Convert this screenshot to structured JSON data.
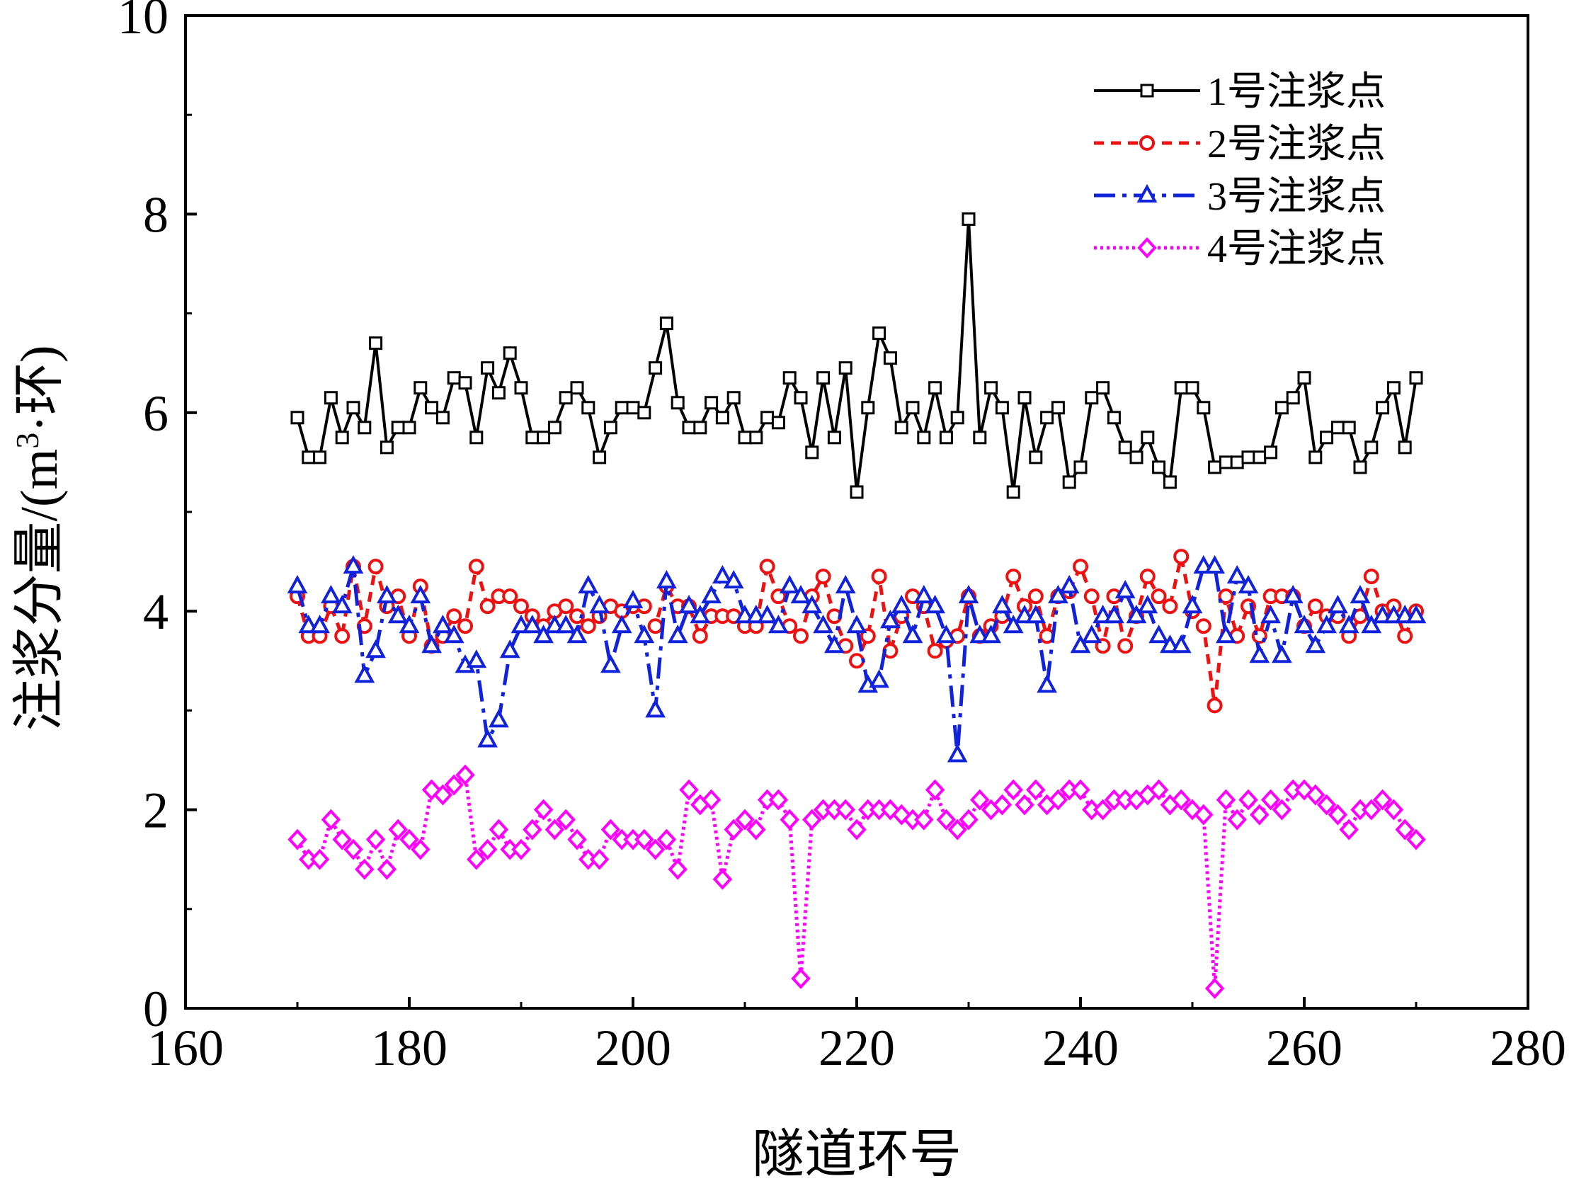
{
  "chart_data": {
    "type": "line",
    "title": "",
    "xlabel": "隧道环号",
    "ylabel_main": "注浆分量/(m",
    "ylabel_sup": "3",
    "ylabel_tail": "·环)",
    "xlim": [
      160,
      280
    ],
    "ylim": [
      0,
      10
    ],
    "xticks": [
      160,
      180,
      200,
      220,
      240,
      260,
      280
    ],
    "yticks": [
      0,
      2,
      4,
      6,
      8,
      10
    ],
    "grid": false,
    "legend_position": "top-right",
    "x": [
      170,
      171,
      172,
      173,
      174,
      175,
      176,
      177,
      178,
      179,
      180,
      181,
      182,
      183,
      184,
      185,
      186,
      187,
      188,
      189,
      190,
      191,
      192,
      193,
      194,
      195,
      196,
      197,
      198,
      199,
      200,
      201,
      202,
      203,
      204,
      205,
      206,
      207,
      208,
      209,
      210,
      211,
      212,
      213,
      214,
      215,
      216,
      217,
      218,
      219,
      220,
      221,
      222,
      223,
      224,
      225,
      226,
      227,
      228,
      229,
      230,
      231,
      232,
      233,
      234,
      235,
      236,
      237,
      238,
      239,
      240,
      241,
      242,
      243,
      244,
      245,
      246,
      247,
      248,
      249,
      250,
      251,
      252,
      253,
      254,
      255,
      256,
      257,
      258,
      259,
      260,
      261,
      262,
      263,
      264,
      265,
      266,
      267,
      268,
      269,
      270
    ],
    "series": [
      {
        "name": "1号注浆点",
        "color": "#000000",
        "marker": "square",
        "dash": "solid",
        "values": [
          5.95,
          5.55,
          5.55,
          6.15,
          5.75,
          6.05,
          5.85,
          6.7,
          5.65,
          5.85,
          5.85,
          6.25,
          6.05,
          5.95,
          6.35,
          6.3,
          5.75,
          6.45,
          6.2,
          6.6,
          6.25,
          5.75,
          5.75,
          5.85,
          6.15,
          6.25,
          6.05,
          5.55,
          5.85,
          6.05,
          6.05,
          6.0,
          6.45,
          6.9,
          6.1,
          5.85,
          5.85,
          6.1,
          5.95,
          6.15,
          5.75,
          5.75,
          5.95,
          5.9,
          6.35,
          6.15,
          5.6,
          6.35,
          5.75,
          6.45,
          5.2,
          6.05,
          6.8,
          6.55,
          5.85,
          6.05,
          5.75,
          6.25,
          5.75,
          5.95,
          7.95,
          5.75,
          6.25,
          6.05,
          5.2,
          6.15,
          5.55,
          5.95,
          6.05,
          5.3,
          5.45,
          6.15,
          6.25,
          5.95,
          5.65,
          5.55,
          5.75,
          5.45,
          5.3,
          6.25,
          6.25,
          6.05,
          5.45,
          5.5,
          5.5,
          5.55,
          5.55,
          5.6,
          6.05,
          6.15,
          6.35,
          5.55,
          5.75,
          5.85,
          5.85,
          5.45,
          5.65,
          6.05,
          6.25,
          5.65,
          6.35
        ]
      },
      {
        "name": "2号注浆点",
        "color": "#ee1111",
        "marker": "circle",
        "dash": "dashed",
        "values": [
          4.15,
          3.75,
          3.75,
          4.05,
          3.75,
          4.45,
          3.85,
          4.45,
          4.05,
          4.15,
          3.75,
          4.25,
          3.65,
          3.75,
          3.95,
          3.85,
          4.45,
          4.05,
          4.15,
          4.15,
          4.05,
          3.95,
          3.85,
          4.0,
          4.05,
          3.95,
          3.85,
          3.95,
          4.05,
          4.0,
          4.05,
          4.05,
          3.85,
          4.25,
          4.05,
          4.05,
          3.75,
          3.95,
          3.95,
          3.95,
          3.85,
          3.85,
          4.45,
          4.15,
          3.85,
          3.75,
          4.15,
          4.35,
          3.95,
          3.65,
          3.5,
          3.75,
          4.35,
          3.6,
          3.95,
          4.15,
          4.05,
          3.6,
          3.7,
          3.75,
          4.15,
          3.75,
          3.85,
          3.95,
          4.35,
          4.05,
          4.15,
          3.75,
          4.15,
          4.2,
          4.45,
          4.15,
          3.65,
          4.15,
          3.65,
          3.95,
          4.35,
          4.15,
          4.05,
          4.55,
          4.0,
          3.85,
          3.05,
          4.15,
          3.75,
          4.05,
          3.75,
          4.15,
          4.15,
          4.15,
          3.85,
          4.05,
          3.95,
          3.95,
          3.75,
          3.95,
          4.35,
          4.0,
          4.05,
          3.75,
          4.0
        ]
      },
      {
        "name": "3号注浆点",
        "color": "#1122dd",
        "marker": "triangle",
        "dash": "dashdot",
        "values": [
          4.25,
          3.85,
          3.85,
          4.15,
          4.05,
          4.45,
          3.35,
          3.6,
          4.15,
          3.95,
          3.85,
          4.15,
          3.65,
          3.85,
          3.75,
          3.45,
          3.5,
          2.7,
          2.9,
          3.6,
          3.85,
          3.85,
          3.75,
          3.85,
          3.85,
          3.75,
          4.25,
          4.05,
          3.45,
          3.85,
          4.1,
          3.75,
          3.0,
          4.3,
          3.75,
          4.05,
          3.95,
          4.15,
          4.35,
          4.3,
          3.95,
          3.95,
          3.95,
          3.85,
          4.25,
          4.15,
          4.05,
          3.85,
          3.65,
          4.25,
          3.85,
          3.25,
          3.3,
          3.9,
          4.05,
          3.75,
          4.15,
          4.05,
          3.75,
          2.55,
          4.15,
          3.75,
          3.75,
          4.05,
          3.85,
          3.95,
          3.95,
          3.25,
          4.15,
          4.25,
          3.65,
          3.75,
          3.95,
          3.95,
          4.2,
          3.95,
          4.05,
          3.75,
          3.65,
          3.65,
          4.05,
          4.45,
          4.45,
          3.75,
          4.35,
          4.25,
          3.55,
          3.95,
          3.55,
          4.15,
          3.85,
          3.65,
          3.85,
          4.05,
          3.85,
          4.15,
          3.85,
          3.95,
          3.95,
          3.95,
          3.95
        ]
      },
      {
        "name": "4号注浆点",
        "color": "#ff00ff",
        "marker": "diamond",
        "dash": "dotted",
        "values": [
          1.7,
          1.5,
          1.5,
          1.9,
          1.7,
          1.6,
          1.4,
          1.7,
          1.4,
          1.8,
          1.7,
          1.6,
          2.2,
          2.15,
          2.25,
          2.35,
          1.5,
          1.6,
          1.8,
          1.6,
          1.6,
          1.8,
          2.0,
          1.8,
          1.9,
          1.7,
          1.5,
          1.5,
          1.8,
          1.7,
          1.7,
          1.7,
          1.6,
          1.7,
          1.4,
          2.2,
          2.05,
          2.1,
          1.3,
          1.8,
          1.9,
          1.8,
          2.1,
          2.1,
          1.9,
          0.3,
          1.9,
          2.0,
          2.0,
          2.0,
          1.8,
          2.0,
          2.0,
          2.0,
          1.95,
          1.9,
          1.9,
          2.2,
          1.9,
          1.8,
          1.9,
          2.1,
          2.0,
          2.05,
          2.2,
          2.05,
          2.2,
          2.05,
          2.1,
          2.2,
          2.2,
          2.0,
          2.0,
          2.1,
          2.1,
          2.1,
          2.15,
          2.2,
          2.05,
          2.1,
          2.0,
          1.95,
          0.2,
          2.1,
          1.9,
          2.1,
          1.95,
          2.1,
          2.0,
          2.2,
          2.2,
          2.15,
          2.05,
          1.95,
          1.8,
          2.0,
          2.0,
          2.1,
          2.0,
          1.8,
          1.7
        ]
      }
    ]
  }
}
